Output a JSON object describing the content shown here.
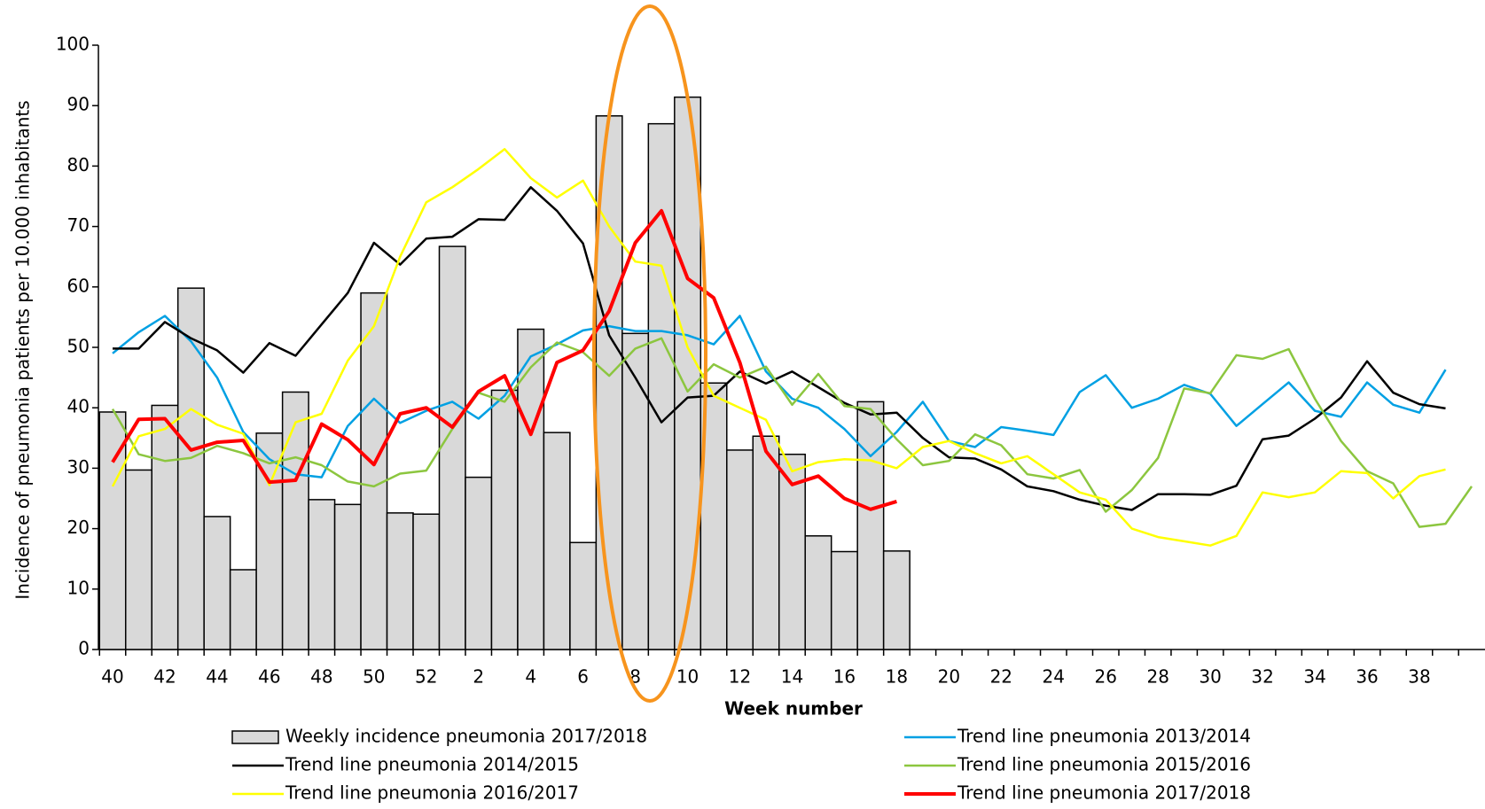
{
  "chart_data": {
    "type": "bar_line",
    "y_label": "Incidence of pneumonia patients per 10.000 inhabitants",
    "x_label": "Week number",
    "categories": [
      40,
      null,
      42,
      null,
      44,
      null,
      46,
      null,
      48,
      null,
      50,
      null,
      52,
      null,
      2,
      null,
      4,
      null,
      6,
      null,
      8,
      null,
      10,
      null,
      12,
      null,
      14,
      null,
      16,
      null,
      18,
      null,
      20,
      null,
      22,
      null,
      24,
      null,
      26,
      null,
      28,
      null,
      30,
      null,
      32,
      null,
      34,
      null,
      36,
      null,
      38,
      null,
      null
    ],
    "ylim": [
      0,
      100
    ],
    "yticks": [
      0,
      10,
      20,
      30,
      40,
      50,
      60,
      70,
      80,
      90,
      100
    ],
    "grid": false,
    "legend": "bottom",
    "series": [
      {
        "name": "Weekly incidence pneumonia 2017/2018",
        "type": "bar",
        "color": "#d9d9d9",
        "values": [
          39.3,
          29.7,
          40.4,
          59.8,
          22,
          13.2,
          35.8,
          42.6,
          24.8,
          24,
          59,
          22.6,
          22.4,
          66.7,
          28.5,
          42.9,
          53,
          35.9,
          17.7,
          88.3,
          52.3,
          87,
          91.4,
          44.1,
          33,
          35.3,
          32.3,
          18.8,
          16.2,
          41,
          16.3,
          null,
          null,
          null,
          null,
          null,
          null,
          null,
          null,
          null,
          null,
          null,
          null,
          null,
          null,
          null,
          null,
          null,
          null,
          null,
          null,
          null,
          null
        ]
      },
      {
        "name": "Trend line pneumonia 2013/2014",
        "type": "line",
        "color": "#00a0e3",
        "values": [
          49,
          52.5,
          55.2,
          51,
          45,
          36,
          31.5,
          29,
          28.5,
          37,
          41.5,
          37.5,
          39.5,
          41,
          38.2,
          42,
          48.5,
          50.5,
          52.8,
          53.5,
          52.7,
          52.7,
          52,
          50.5,
          55.2,
          46,
          41.5,
          40,
          36.5,
          32,
          36,
          41,
          34.5,
          33.5,
          36.8,
          36.2,
          35.5,
          42.6,
          45.4,
          40,
          41.5,
          43.8,
          42.3,
          37,
          40.6,
          44.2,
          39.5,
          38.5,
          44.2,
          40.5,
          39.2,
          46.3,
          null
        ]
      },
      {
        "name": "Trend line pneumonia 2014/2015",
        "type": "line",
        "color": "#000000",
        "values": [
          49.8,
          49.8,
          54.2,
          51.5,
          49.5,
          45.8,
          50.7,
          48.6,
          53.8,
          59,
          67.3,
          63.7,
          68,
          68.3,
          71.2,
          71.1,
          76.5,
          72.6,
          67.2,
          52,
          45,
          37.6,
          41.7,
          42,
          46,
          44,
          46,
          43.4,
          40.8,
          38.9,
          39.2,
          35,
          31.8,
          31.6,
          29.8,
          27,
          26.2,
          24.8,
          23.8,
          23.1,
          25.7,
          25.7,
          25.6,
          27.1,
          34.8,
          35.4,
          38.2,
          41.7,
          47.7,
          42.5,
          40.6,
          39.9,
          null
        ]
      },
      {
        "name": "Trend line pneumonia 2015/2016",
        "type": "line",
        "color": "#8cc63f",
        "values": [
          39.8,
          32.3,
          31.2,
          31.7,
          33.7,
          32.5,
          30.8,
          31.8,
          30.5,
          27.8,
          27,
          29.1,
          29.6,
          36.5,
          42.5,
          41,
          46.7,
          50.8,
          49.2,
          45.3,
          49.8,
          51.5,
          42.7,
          47.2,
          45,
          46.8,
          40.5,
          45.6,
          40.3,
          39.8,
          34.8,
          30.5,
          31.2,
          35.6,
          33.8,
          29,
          28.3,
          29.7,
          22.8,
          26.4,
          31.7,
          43.2,
          42.4,
          48.7,
          48.1,
          49.7,
          41.5,
          34.5,
          29.5,
          27.5,
          20.3,
          20.8,
          27
        ]
      },
      {
        "name": "Trend line pneumonia 2016/2017",
        "type": "line",
        "color": "#ffff00",
        "values": [
          27,
          35.3,
          36.5,
          39.8,
          37.2,
          35.7,
          27.2,
          37.6,
          39,
          47.8,
          53.5,
          65,
          74,
          76.5,
          79.5,
          82.8,
          78,
          74.8,
          77.6,
          70,
          64.2,
          63.5,
          50,
          42,
          40,
          38,
          29.5,
          31,
          31.5,
          31.3,
          30,
          33.5,
          34.5,
          32.5,
          30.8,
          32,
          29,
          26,
          24.8,
          20,
          18.6,
          17.9,
          17.2,
          18.8,
          26,
          25.2,
          26,
          29.5,
          29.2,
          25,
          28.7,
          29.8,
          null
        ]
      },
      {
        "name": "Trend line pneumonia 2017/2018",
        "type": "line",
        "color": "#ff0000",
        "width": 4,
        "values": [
          31,
          38.1,
          38.2,
          33,
          34.3,
          34.6,
          27.7,
          28,
          37.3,
          34.7,
          30.6,
          39,
          40,
          36.8,
          42.7,
          45.3,
          35.6,
          47.5,
          49.5,
          56,
          67.3,
          72.6,
          61.4,
          58.2,
          47.5,
          32.8,
          27.3,
          28.7,
          25,
          23.2,
          24.5,
          null,
          null,
          null,
          null,
          null,
          null,
          null,
          null,
          null,
          null,
          null,
          null,
          null,
          null,
          null,
          null,
          null,
          null,
          null,
          null,
          null,
          null
        ]
      }
    ]
  }
}
